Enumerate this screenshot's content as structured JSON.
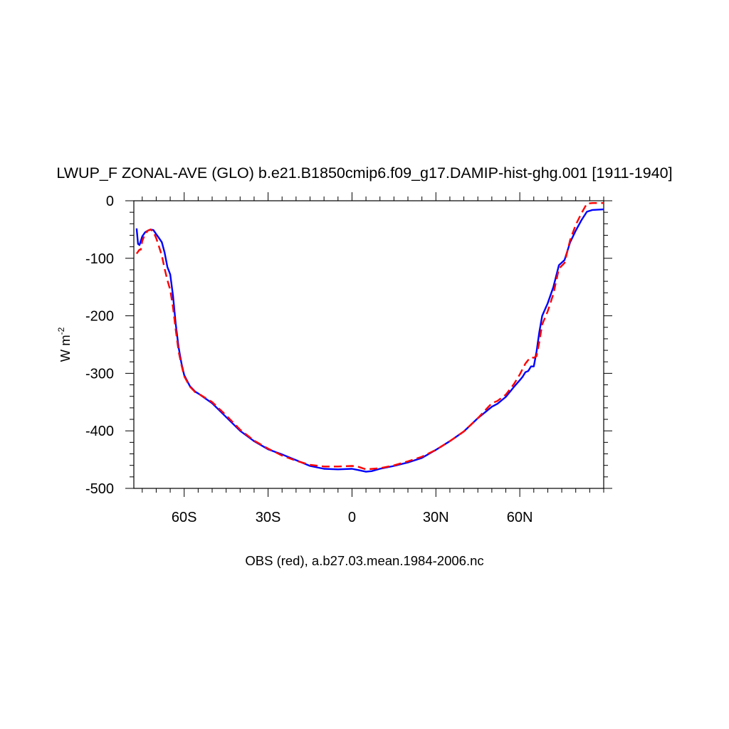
{
  "chart_data": {
    "type": "line",
    "title": "LWUP_F ZONAL-AVE (GLO) b.e21.B1850cmip6.f09_g17.DAMIP-hist-ghg.001 [1911-1940]",
    "xlabel": "OBS (red), a.b27.03.mean.1984-2006.nc",
    "ylabel_main": "W m",
    "ylabel_sup": "-2",
    "xlim": [
      -78,
      90
    ],
    "ylim": [
      -500,
      0
    ],
    "x_ticks": [
      {
        "value": -60,
        "label": "60S"
      },
      {
        "value": -30,
        "label": "30S"
      },
      {
        "value": 0,
        "label": "0"
      },
      {
        "value": 30,
        "label": "30N"
      },
      {
        "value": 60,
        "label": "60N"
      }
    ],
    "y_ticks": [
      {
        "value": 0,
        "label": "0"
      },
      {
        "value": -100,
        "label": "-100"
      },
      {
        "value": -200,
        "label": "-200"
      },
      {
        "value": -300,
        "label": "-300"
      },
      {
        "value": -400,
        "label": "-400"
      },
      {
        "value": -500,
        "label": "-500"
      }
    ],
    "grid": false,
    "series": [
      {
        "color": "#0000ff",
        "dash": "solid",
        "x": [
          -77,
          -76.5,
          -76,
          -75,
          -74,
          -73,
          -72,
          -71,
          -70,
          -69,
          -68,
          -67,
          -66,
          -65,
          -64,
          -63,
          -62,
          -61,
          -60,
          -58,
          -56,
          -55,
          -50,
          -45,
          -40,
          -35,
          -30,
          -25,
          -20,
          -15,
          -10,
          -5,
          0,
          2,
          5,
          7,
          10,
          15,
          20,
          25,
          30,
          35,
          40,
          45,
          50,
          52,
          55,
          58,
          60,
          61,
          62,
          63,
          64,
          65,
          66,
          67,
          68,
          70,
          72,
          74,
          76,
          78,
          80,
          82,
          84,
          86,
          90
        ],
        "y": [
          -48,
          -75,
          -77,
          -62,
          -55,
          -52,
          -50,
          -51,
          -58,
          -65,
          -72,
          -90,
          -115,
          -128,
          -165,
          -215,
          -255,
          -282,
          -303,
          -322,
          -332,
          -335,
          -352,
          -376,
          -400,
          -418,
          -432,
          -441,
          -451,
          -461,
          -466,
          -467,
          -466,
          -468,
          -471,
          -470,
          -466,
          -461,
          -455,
          -447,
          -433,
          -418,
          -401,
          -378,
          -358,
          -353,
          -341,
          -323,
          -312,
          -306,
          -298,
          -296,
          -288,
          -288,
          -262,
          -228,
          -200,
          -178,
          -150,
          -112,
          -103,
          -72,
          -52,
          -34,
          -19,
          -16,
          -15
        ]
      },
      {
        "color": "#ff0000",
        "dash": "dashed",
        "x": [
          -77,
          -76,
          -75.5,
          -75,
          -74,
          -73,
          -72,
          -71,
          -70,
          -69,
          -68,
          -67,
          -66,
          -65,
          -64,
          -63,
          -62,
          -61,
          -60,
          -58,
          -56,
          -55,
          -50,
          -45,
          -40,
          -35,
          -30,
          -25,
          -20,
          -15,
          -10,
          -5,
          0,
          2,
          5,
          10,
          15,
          20,
          25,
          30,
          35,
          40,
          45,
          50,
          52,
          55,
          58,
          60,
          62,
          63,
          64,
          65,
          66,
          67,
          68,
          70,
          72,
          74,
          76,
          78,
          80,
          82,
          84,
          86,
          90
        ],
        "y": [
          -92,
          -85,
          -85,
          -70,
          -58,
          -52,
          -50,
          -54,
          -65,
          -80,
          -95,
          -118,
          -138,
          -155,
          -185,
          -225,
          -262,
          -285,
          -305,
          -323,
          -333,
          -335,
          -350,
          -373,
          -398,
          -417,
          -431,
          -443,
          -452,
          -459,
          -462,
          -462,
          -461,
          -462,
          -467,
          -465,
          -460,
          -453,
          -445,
          -433,
          -418,
          -401,
          -378,
          -352,
          -348,
          -337,
          -318,
          -302,
          -283,
          -277,
          -272,
          -273,
          -270,
          -245,
          -215,
          -192,
          -162,
          -118,
          -108,
          -68,
          -42,
          -22,
          -5,
          -4,
          -4
        ]
      }
    ]
  }
}
